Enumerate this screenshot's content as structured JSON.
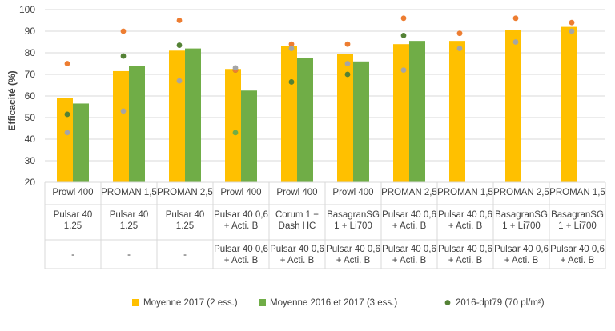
{
  "chart_data": {
    "type": "bar",
    "ylabel": "Efficacité (%)",
    "ylim": [
      20,
      100
    ],
    "yticks": [
      20,
      30,
      40,
      50,
      60,
      70,
      80,
      90,
      100
    ],
    "grid": true,
    "legend_position": "bottom",
    "categories": [
      [
        "Prowl 400",
        "Pulsar 40",
        "1.25",
        "-"
      ],
      [
        "PROMAN 1,5",
        "Pulsar 40",
        "1.25",
        "-"
      ],
      [
        "PROMAN 2,5",
        "Pulsar 40",
        "1.25",
        "-"
      ],
      [
        "Prowl 400",
        "Pulsar 40 0,6",
        "+ Acti. B",
        "Pulsar 40 0,6",
        "+ Acti. B"
      ],
      [
        "Prowl 400",
        "Corum 1  +",
        "Dash HC",
        "Pulsar 40 0,6",
        "+ Acti. B"
      ],
      [
        "Prowl 400",
        "BasagranSG",
        "1 + Li700",
        "Pulsar 40 0,6",
        "+ Acti. B"
      ],
      [
        "PROMAN 2,5",
        "Pulsar 40 0,6",
        "+ Acti. B",
        "Pulsar 40 0,6",
        "+ Acti. B"
      ],
      [
        "PROMAN 1,5",
        "Pulsar 40 0,6",
        "+ Acti. B",
        "Pulsar 40 0,6",
        "+ Acti. B"
      ],
      [
        "PROMAN 2,5",
        "BasagranSG",
        "1 + Li700",
        "Pulsar 40 0,6",
        "+ Acti. B"
      ],
      [
        "PROMAN 1,5",
        "BasagranSG",
        "1 + Li700",
        "Pulsar 40 0,6",
        "+ Acti. B"
      ]
    ],
    "series": [
      {
        "name": "Moyenne 2017 (2 ess.)",
        "kind": "bar",
        "color": "#FFC000",
        "values": [
          59,
          71.5,
          81,
          72.5,
          83,
          79.5,
          84,
          85.5,
          90.5,
          92
        ]
      },
      {
        "name": "Moyenne 2016 et 2017 (3 ess.)",
        "kind": "bar",
        "color": "#70AD47",
        "values": [
          56.5,
          74,
          82,
          62.5,
          77.5,
          76,
          85.5,
          null,
          null,
          null
        ]
      },
      {
        "name": "2016-dpt79  (70 pl/m²)",
        "kind": "point",
        "color": "#548235",
        "values": [
          51.5,
          78.5,
          83.5,
          72,
          66.5,
          70,
          88,
          null,
          null,
          null
        ]
      },
      {
        "name": "",
        "kind": "point",
        "color": "#ED7D31",
        "values": [
          75,
          90,
          95,
          72,
          84,
          84,
          96,
          89,
          96,
          94
        ]
      },
      {
        "name": "",
        "kind": "point",
        "color": "#A5A5A5",
        "values": [
          43,
          53,
          67,
          73,
          82,
          75,
          72,
          82,
          85,
          90
        ]
      },
      {
        "name": "",
        "kind": "point",
        "color": "#70AD47",
        "values": [
          null,
          null,
          null,
          43,
          null,
          null,
          null,
          null,
          null,
          null
        ]
      }
    ]
  }
}
